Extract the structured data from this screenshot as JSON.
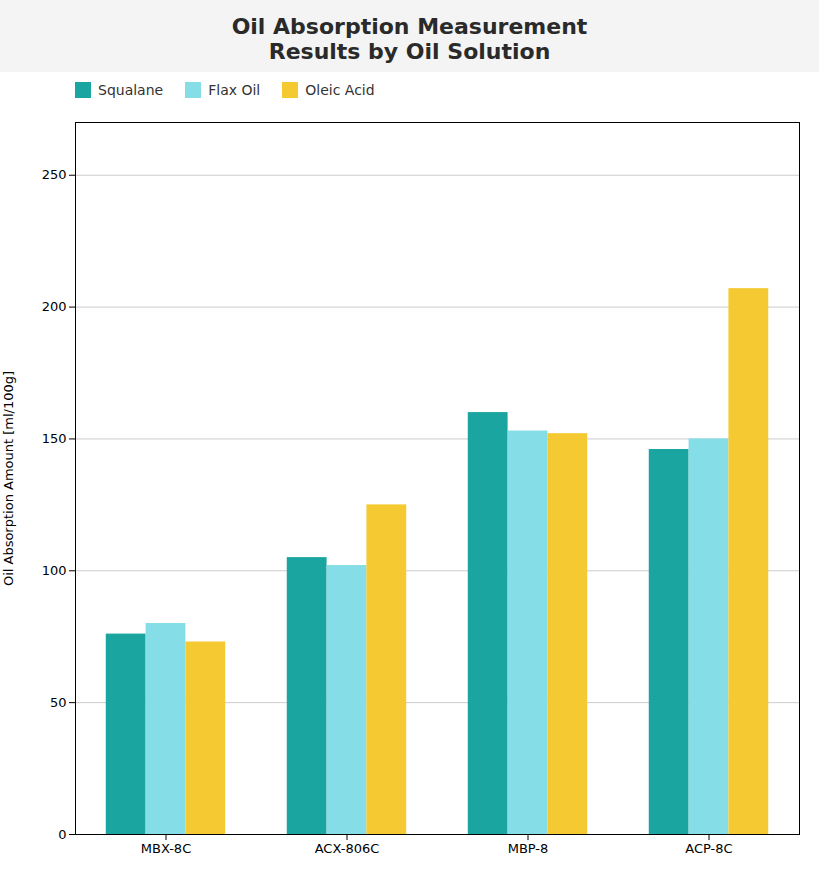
{
  "chart_data": {
    "type": "bar",
    "title": "Oil Absorption Measurement\nResults by Oil Solution",
    "ylabel": "Oil Absorption Amount [ml/100g]",
    "categories": [
      "MBX-8C",
      "ACX-806C",
      "MBP-8",
      "ACP-8C"
    ],
    "series": [
      {
        "name": "Squalane",
        "color": "#1AA5A0",
        "values": [
          76,
          105,
          160,
          146
        ]
      },
      {
        "name": "Flax Oil",
        "color": "#85DDE8",
        "values": [
          80,
          102,
          153,
          150
        ]
      },
      {
        "name": "Oleic Acid",
        "color": "#F5C932",
        "values": [
          73,
          125,
          152,
          207
        ]
      }
    ],
    "ylim": [
      0,
      270
    ],
    "yticks": [
      0,
      50,
      100,
      150,
      200,
      250
    ],
    "grid": true,
    "legend": "upper left"
  }
}
